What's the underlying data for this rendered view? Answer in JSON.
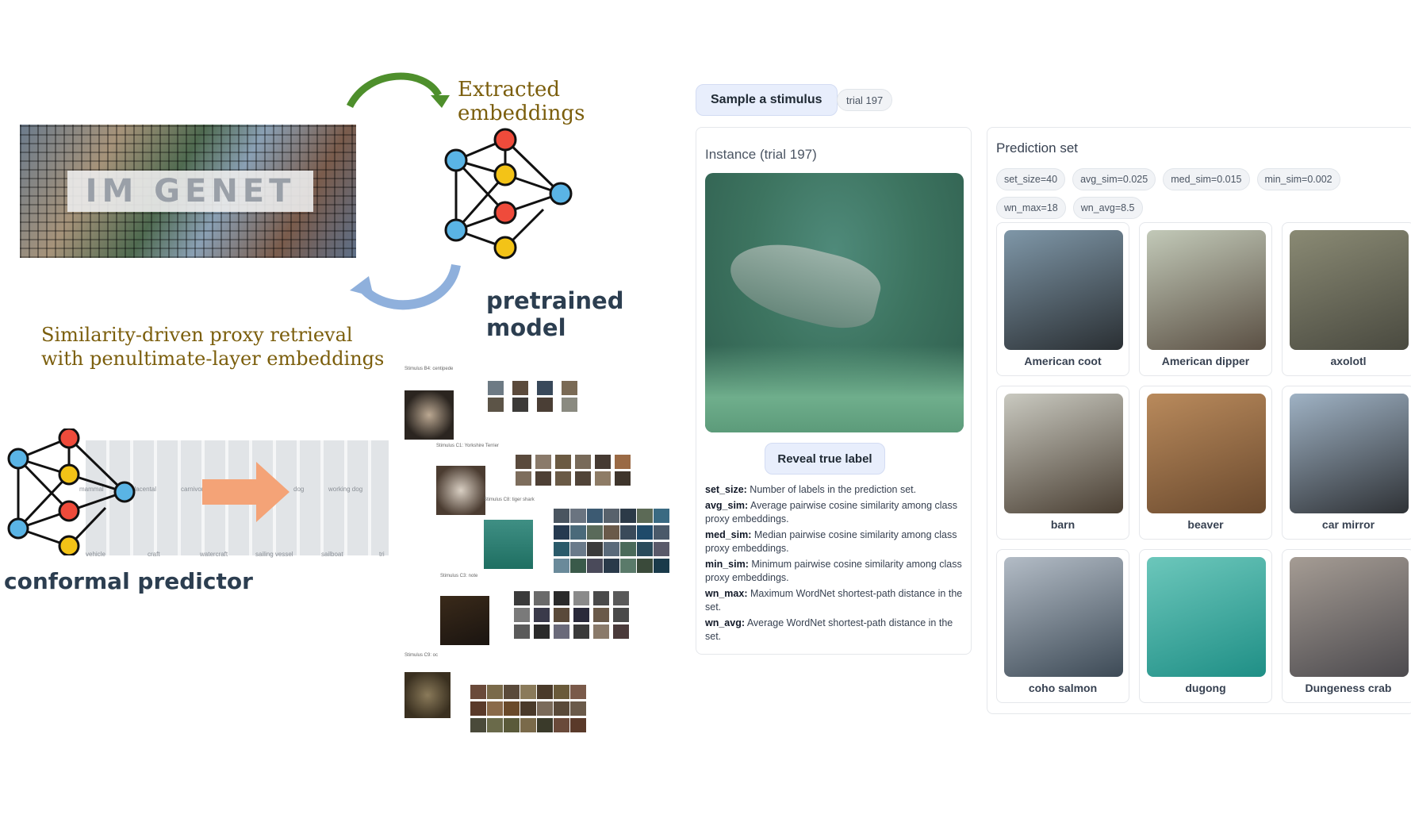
{
  "figure": {
    "extracted_label": "Extracted embeddings",
    "model_label": "pretrained model",
    "retrieval_label_line1": "Similarity-driven proxy retrieval",
    "retrieval_label_line2": "with penultimate-layer embeddings",
    "conformal_label": "conformal predictor",
    "imagenet_wordmark": "IM GENET",
    "hierarchy_labels": [
      "mammal",
      "placental",
      "carnivore",
      "dog",
      "working dog",
      "vehicle",
      "craft",
      "watercraft",
      "sailing vessel",
      "sailboat",
      "tri"
    ],
    "stimulus_captions": [
      "Stimulus B4: centipede",
      "Stimulus C1: Yorkshire Terrier",
      "Stimulus C8: tiger shark",
      "Stimulus C3: note",
      "Stimulus C9: oc"
    ]
  },
  "ui": {
    "sample_button": "Sample a stimulus",
    "trial_badge": "trial 197",
    "instance_title": "Instance (trial 197)",
    "reveal_button": "Reveal true label",
    "definitions": [
      {
        "term": "set_size:",
        "text": "Number of labels in the prediction set."
      },
      {
        "term": "avg_sim:",
        "text": "Average pairwise cosine similarity among class proxy embeddings."
      },
      {
        "term": "med_sim:",
        "text": "Median pairwise cosine similarity among class proxy embeddings."
      },
      {
        "term": "min_sim:",
        "text": "Minimum pairwise cosine similarity among class proxy embeddings."
      },
      {
        "term": "wn_max:",
        "text": "Maximum WordNet shortest-path distance in the set."
      },
      {
        "term": "wn_avg:",
        "text": "Average WordNet shortest-path distance in the set."
      }
    ],
    "prediction_title": "Prediction set",
    "chips": [
      "set_size=40",
      "avg_sim=0.025",
      "med_sim=0.015",
      "min_sim=0.002",
      "wn_max=18",
      "wn_avg=8.5"
    ],
    "tiles": [
      {
        "label": "American coot",
        "colors": [
          "#2a2f33",
          "#7f97a8"
        ]
      },
      {
        "label": "American dipper",
        "colors": [
          "#5b5044",
          "#c2c9b8"
        ]
      },
      {
        "label": "axolotl",
        "colors": [
          "#4a4a40",
          "#8a8a74"
        ]
      },
      {
        "label": "barn",
        "colors": [
          "#4a3f33",
          "#c9c9c0"
        ]
      },
      {
        "label": "beaver",
        "colors": [
          "#6b4a2e",
          "#b98a5c"
        ]
      },
      {
        "label": "car mirror",
        "colors": [
          "#2f3236",
          "#9fb2c4"
        ]
      },
      {
        "label": "coho salmon",
        "colors": [
          "#3d4a56",
          "#b3bcc6"
        ]
      },
      {
        "label": "dugong",
        "colors": [
          "#1f8f86",
          "#6cc7bb"
        ]
      },
      {
        "label": "Dungeness crab",
        "colors": [
          "#4c4a4e",
          "#a59c94"
        ]
      }
    ]
  }
}
